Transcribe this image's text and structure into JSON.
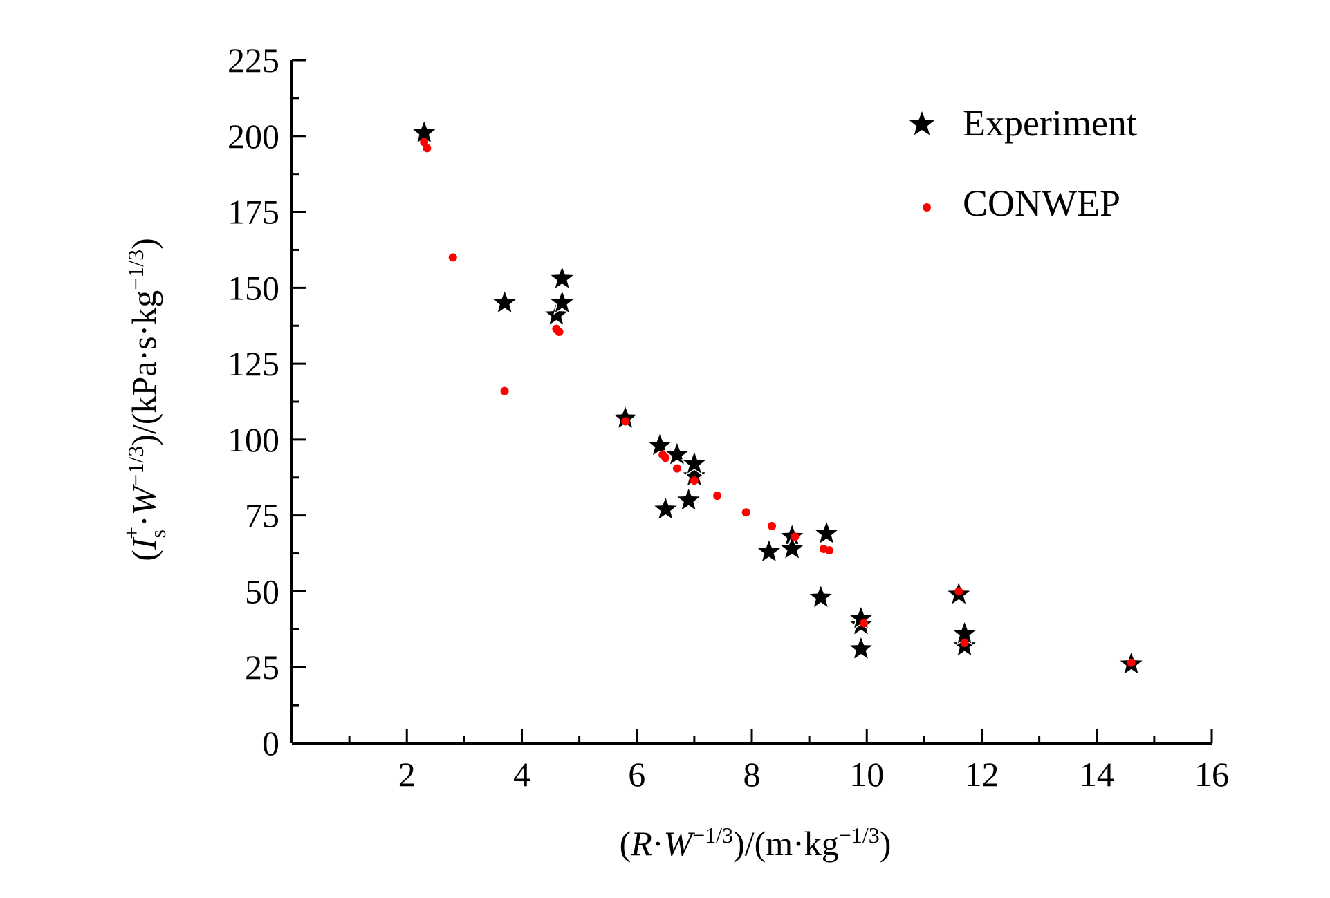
{
  "chart_data": {
    "type": "scatter",
    "xlabel": "(R·W−1/3)/(m·kg−1/3)",
    "ylabel": "(Is+·W−1/3)/(kPa·s·kg−1/3)",
    "xlim": [
      0,
      16
    ],
    "ylim": [
      0,
      225
    ],
    "x_ticks": [
      2,
      4,
      6,
      8,
      10,
      12,
      14,
      16
    ],
    "y_ticks": [
      0,
      25,
      50,
      75,
      100,
      125,
      150,
      175,
      200,
      225
    ],
    "x_tick_labels": [
      "2",
      "4",
      "6",
      "8",
      "10",
      "12",
      "14",
      "16"
    ],
    "y_tick_labels": [
      "0",
      "25",
      "50",
      "75",
      "100",
      "125",
      "150",
      "175",
      "200",
      "225"
    ],
    "grid": false,
    "legend_position": "top-right",
    "series": [
      {
        "name": "Experiment",
        "marker": "star",
        "color": "#000000",
        "points": [
          [
            2.3,
            201
          ],
          [
            3.7,
            145
          ],
          [
            4.6,
            141
          ],
          [
            4.7,
            145
          ],
          [
            4.7,
            153
          ],
          [
            5.8,
            107
          ],
          [
            6.4,
            98
          ],
          [
            6.5,
            77
          ],
          [
            6.7,
            95
          ],
          [
            6.9,
            80
          ],
          [
            7.0,
            88
          ],
          [
            7.0,
            92
          ],
          [
            8.3,
            63
          ],
          [
            8.7,
            68
          ],
          [
            8.7,
            64
          ],
          [
            9.2,
            48
          ],
          [
            9.3,
            69
          ],
          [
            9.9,
            31
          ],
          [
            9.9,
            39
          ],
          [
            9.9,
            41
          ],
          [
            11.6,
            49
          ],
          [
            11.7,
            32
          ],
          [
            11.7,
            36
          ],
          [
            14.6,
            26
          ]
        ]
      },
      {
        "name": "CONWEP",
        "marker": "dot",
        "color": "#ff0000",
        "points": [
          [
            2.3,
            198
          ],
          [
            2.35,
            196
          ],
          [
            2.8,
            160
          ],
          [
            3.7,
            116
          ],
          [
            4.6,
            136.5
          ],
          [
            4.65,
            135.5
          ],
          [
            5.8,
            106
          ],
          [
            6.45,
            95
          ],
          [
            6.5,
            94
          ],
          [
            6.7,
            90.5
          ],
          [
            7.0,
            86.5
          ],
          [
            7.4,
            81.5
          ],
          [
            7.9,
            76
          ],
          [
            8.35,
            71.5
          ],
          [
            8.75,
            68
          ],
          [
            9.25,
            64
          ],
          [
            9.35,
            63.5
          ],
          [
            9.95,
            39.5
          ],
          [
            11.6,
            50
          ],
          [
            11.7,
            33
          ],
          [
            14.6,
            26.5
          ]
        ]
      }
    ]
  }
}
